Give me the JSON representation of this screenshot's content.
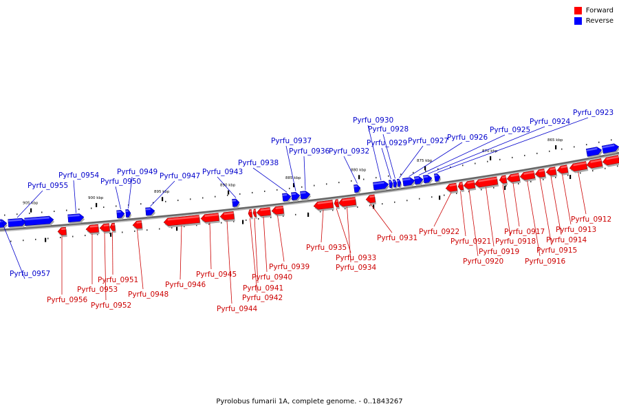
{
  "legend": {
    "forward_label": "Forward",
    "reverse_label": "Reverse",
    "forward_color": "#ff0000",
    "reverse_color": "#0000ff",
    "forward_label_color": "#cc0000",
    "reverse_label_color": "#0000cc"
  },
  "caption": "Pyrolobus fumarii 1A, complete genome. - 0..1843267",
  "scale_labels": [
    "905 kbp",
    "900 kbp",
    "895 kbp",
    "890 kbp",
    "885 kbp",
    "880 kbp",
    "875 kbp",
    "870 kbp",
    "865 kbp"
  ],
  "genes": [
    {
      "name": "Pyrfu_0957",
      "strand": "reverse"
    },
    {
      "name": "Pyrfu_0956",
      "strand": "forward"
    },
    {
      "name": "Pyrfu_0955",
      "strand": "reverse"
    },
    {
      "name": "Pyrfu_0954",
      "strand": "reverse"
    },
    {
      "name": "Pyrfu_0953",
      "strand": "forward"
    },
    {
      "name": "Pyrfu_0952",
      "strand": "forward"
    },
    {
      "name": "Pyrfu_0951",
      "strand": "forward"
    },
    {
      "name": "Pyrfu_0950",
      "strand": "reverse"
    },
    {
      "name": "Pyrfu_0949",
      "strand": "reverse"
    },
    {
      "name": "Pyrfu_0948",
      "strand": "forward"
    },
    {
      "name": "Pyrfu_0947",
      "strand": "reverse"
    },
    {
      "name": "Pyrfu_0946",
      "strand": "forward"
    },
    {
      "name": "Pyrfu_0945",
      "strand": "forward"
    },
    {
      "name": "Pyrfu_0944",
      "strand": "forward"
    },
    {
      "name": "Pyrfu_0943",
      "strand": "reverse"
    },
    {
      "name": "Pyrfu_0942",
      "strand": "forward"
    },
    {
      "name": "Pyrfu_0941",
      "strand": "forward"
    },
    {
      "name": "Pyrfu_0940",
      "strand": "forward"
    },
    {
      "name": "Pyrfu_0939",
      "strand": "forward"
    },
    {
      "name": "Pyrfu_0938",
      "strand": "reverse"
    },
    {
      "name": "Pyrfu_0937",
      "strand": "reverse"
    },
    {
      "name": "Pyrfu_0936",
      "strand": "reverse"
    },
    {
      "name": "Pyrfu_0935",
      "strand": "forward"
    },
    {
      "name": "Pyrfu_0934",
      "strand": "forward"
    },
    {
      "name": "Pyrfu_0933",
      "strand": "forward"
    },
    {
      "name": "Pyrfu_0932",
      "strand": "reverse"
    },
    {
      "name": "Pyrfu_0931",
      "strand": "forward"
    },
    {
      "name": "Pyrfu_0930",
      "strand": "reverse"
    },
    {
      "name": "Pyrfu_0929",
      "strand": "reverse"
    },
    {
      "name": "Pyrfu_0928",
      "strand": "reverse"
    },
    {
      "name": "Pyrfu_0927",
      "strand": "reverse"
    },
    {
      "name": "Pyrfu_0926",
      "strand": "reverse"
    },
    {
      "name": "Pyrfu_0925",
      "strand": "reverse"
    },
    {
      "name": "Pyrfu_0924",
      "strand": "reverse"
    },
    {
      "name": "Pyrfu_0923",
      "strand": "reverse"
    },
    {
      "name": "Pyrfu_0922",
      "strand": "forward"
    },
    {
      "name": "Pyrfu_0921",
      "strand": "forward"
    },
    {
      "name": "Pyrfu_0920",
      "strand": "forward"
    },
    {
      "name": "Pyrfu_0919",
      "strand": "forward"
    },
    {
      "name": "Pyrfu_0918",
      "strand": "forward"
    },
    {
      "name": "Pyrfu_0917",
      "strand": "forward"
    },
    {
      "name": "Pyrfu_0916",
      "strand": "forward"
    },
    {
      "name": "Pyrfu_0915",
      "strand": "forward"
    },
    {
      "name": "Pyrfu_0914",
      "strand": "forward"
    },
    {
      "name": "Pyrfu_0913",
      "strand": "forward"
    },
    {
      "name": "Pyrfu_0912",
      "strand": "forward"
    }
  ]
}
